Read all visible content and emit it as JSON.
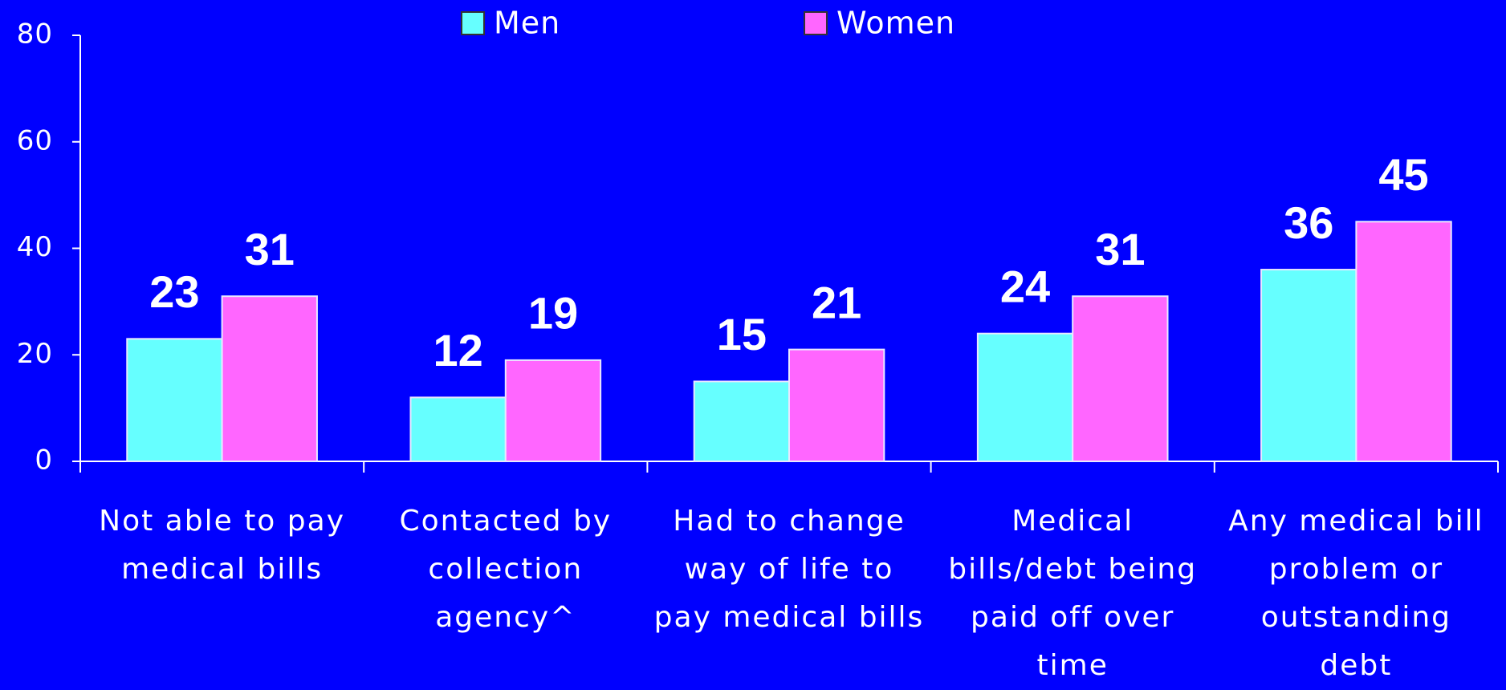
{
  "chart_data": {
    "type": "bar",
    "categories": [
      "Not able to pay medical bills",
      "Contacted by collection agency^",
      "Had to change way of life to pay medical bills",
      "Medical bills/debt being paid off over time",
      "Any medical bill problem or outstanding debt"
    ],
    "series": [
      {
        "name": "Men",
        "color": "#66ffff",
        "values": [
          23,
          12,
          15,
          24,
          36
        ]
      },
      {
        "name": "Women",
        "color": "#ff66ff",
        "values": [
          31,
          19,
          21,
          31,
          45
        ]
      }
    ],
    "ylim": [
      0,
      80
    ],
    "yticks": [
      0,
      20,
      40,
      60,
      80
    ],
    "grid": false,
    "legend": "top"
  }
}
